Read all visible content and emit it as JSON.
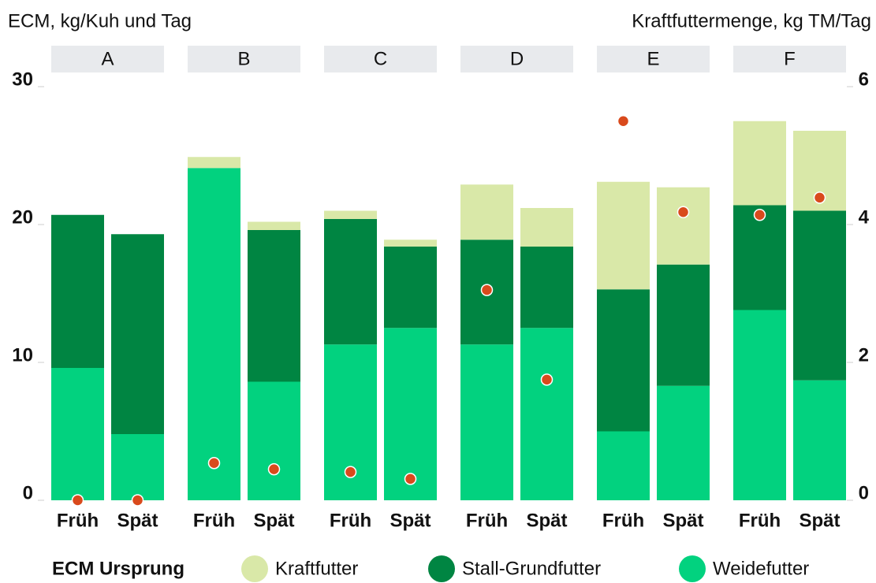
{
  "chart_data": {
    "type": "faceted_stacked_bar",
    "y_label": "ECM, kg/Kuh und Tag",
    "y2_label": "Kraftfuttermenge, kg TM/Tag",
    "facets": [
      {
        "label": "A",
        "categories": [
          "Früh",
          "Spät"
        ]
      },
      {
        "label": "B",
        "categories": [
          "Früh",
          "Spät"
        ]
      },
      {
        "label": "C",
        "categories": [
          "Früh",
          "Spät"
        ]
      },
      {
        "label": "D",
        "categories": [
          "Früh",
          "Spät"
        ]
      },
      {
        "label": "E",
        "categories": [
          "Früh",
          "Spät"
        ]
      },
      {
        "label": "F",
        "categories": [
          "Früh",
          "Spät"
        ]
      }
    ],
    "legend_title": "ECM Ursprung",
    "series": [
      {
        "name": "Kraftfutter",
        "color": "#d9e8a8",
        "values": [
          [
            0,
            0
          ],
          [
            0.8,
            0.6
          ],
          [
            0.6,
            0.5
          ],
          [
            4.0,
            2.8
          ],
          [
            7.8,
            5.6
          ],
          [
            6.1,
            5.8
          ]
        ]
      },
      {
        "name": "Stall-Grundfutter",
        "color": "#008542",
        "values": [
          [
            11.1,
            14.5
          ],
          [
            0,
            11.0
          ],
          [
            9.1,
            5.9
          ],
          [
            7.6,
            5.9
          ],
          [
            10.3,
            8.8
          ],
          [
            7.6,
            12.3
          ]
        ]
      },
      {
        "name": "Weidefutter",
        "color": "#02d27f",
        "values": [
          [
            9.6,
            4.8
          ],
          [
            24.1,
            8.6
          ],
          [
            11.3,
            12.5
          ],
          [
            11.3,
            12.5
          ],
          [
            5.0,
            8.3
          ],
          [
            13.8,
            8.7
          ]
        ]
      }
    ],
    "points": {
      "color": "#d94a1c",
      "axis": "y2",
      "values": [
        [
          0,
          0
        ],
        [
          0.54,
          0.45
        ],
        [
          0.41,
          0.31
        ],
        [
          3.05,
          1.75
        ],
        [
          5.5,
          4.18
        ],
        [
          4.14,
          4.39
        ]
      ]
    },
    "ylim": [
      0,
      30
    ],
    "yticks": [
      0,
      10,
      20,
      30
    ],
    "y2lim": [
      0,
      6
    ],
    "y2ticks": [
      0,
      2,
      4,
      6
    ]
  }
}
